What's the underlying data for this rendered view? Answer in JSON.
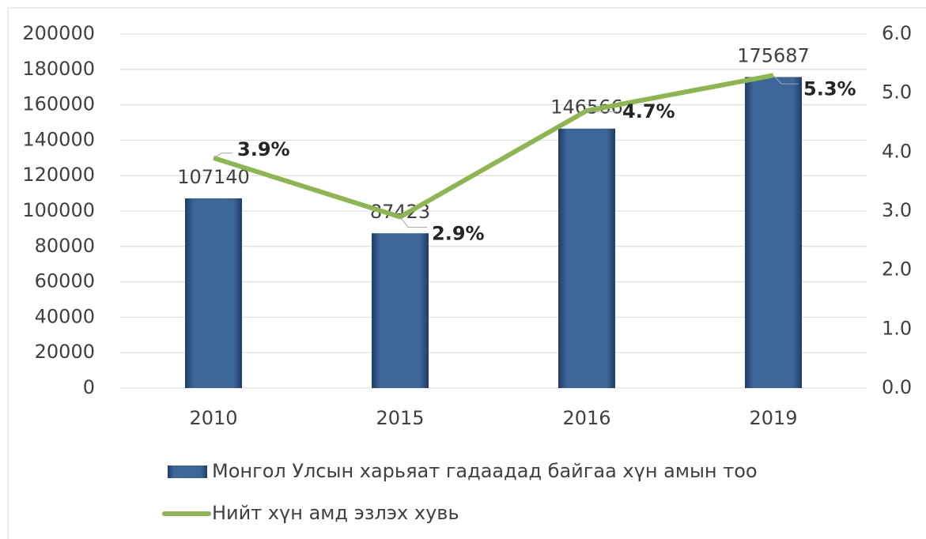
{
  "chart_data": {
    "type": "bar-line",
    "categories": [
      "2010",
      "2015",
      "2016",
      "2019"
    ],
    "series": [
      {
        "name": "Монгол Улсын харьяат гадаадад байгаа хүн амын тоо",
        "type": "bar",
        "color": "#3c6598",
        "values": [
          107140,
          87423,
          146566,
          175687
        ]
      },
      {
        "name": "Нийт хүн амд эзлэх хувь",
        "type": "line",
        "axis": "y2",
        "color": "#8db651",
        "values": [
          3.9,
          2.9,
          4.7,
          5.3
        ],
        "value_labels": [
          "3.9%",
          "2.9%",
          "4.7%",
          "5.3%"
        ]
      }
    ],
    "ylim": [
      0,
      200000
    ],
    "yticks": [
      0,
      20000,
      40000,
      60000,
      80000,
      100000,
      120000,
      140000,
      160000,
      180000,
      200000
    ],
    "y2lim": [
      0,
      6
    ],
    "y2ticks": [
      {
        "value": 0,
        "label": "0.0"
      },
      {
        "value": 1,
        "label": "1.0"
      },
      {
        "value": 2,
        "label": "2.0"
      },
      {
        "value": 3,
        "label": "3.0"
      },
      {
        "value": 4,
        "label": "4.0"
      },
      {
        "value": 5,
        "label": "5.0"
      },
      {
        "value": 6,
        "label": "6.0"
      }
    ],
    "grid": true,
    "legend": "bottom"
  }
}
